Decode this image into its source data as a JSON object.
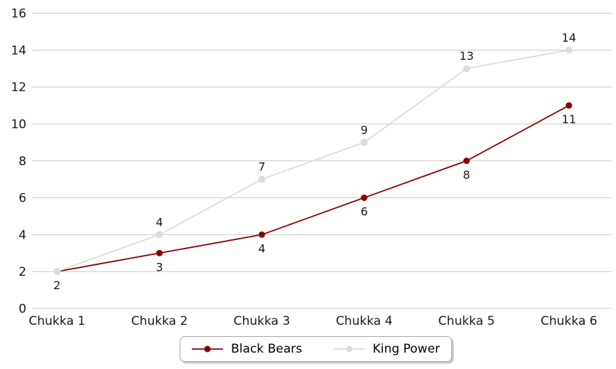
{
  "chart_data": {
    "type": "line",
    "title": "",
    "xlabel": "",
    "ylabel": "",
    "categories": [
      "Chukka 1",
      "Chukka 2",
      "Chukka 3",
      "Chukka 4",
      "Chukka 5",
      "Chukka 6"
    ],
    "series": [
      {
        "name": "Black Bears",
        "values": [
          2,
          3,
          4,
          6,
          8,
          11
        ],
        "color": "#8B0000",
        "marker": "circle",
        "label_position": "below"
      },
      {
        "name": "King Power",
        "values": [
          2,
          4,
          7,
          9,
          13,
          14
        ],
        "color": "#DCDCDC",
        "marker": "circle",
        "label_position": "above"
      }
    ],
    "ylim": [
      0,
      16
    ],
    "yticks": [
      0,
      2,
      4,
      6,
      8,
      10,
      12,
      14,
      16
    ],
    "grid": "horizontal",
    "gridline_color": "#C8C8C8",
    "tick_label_color": "#1a1a1a",
    "data_label_color": "#1a1a1a",
    "data_labels": true,
    "legend_position": "bottom-center",
    "background": "#FFFFFF"
  }
}
